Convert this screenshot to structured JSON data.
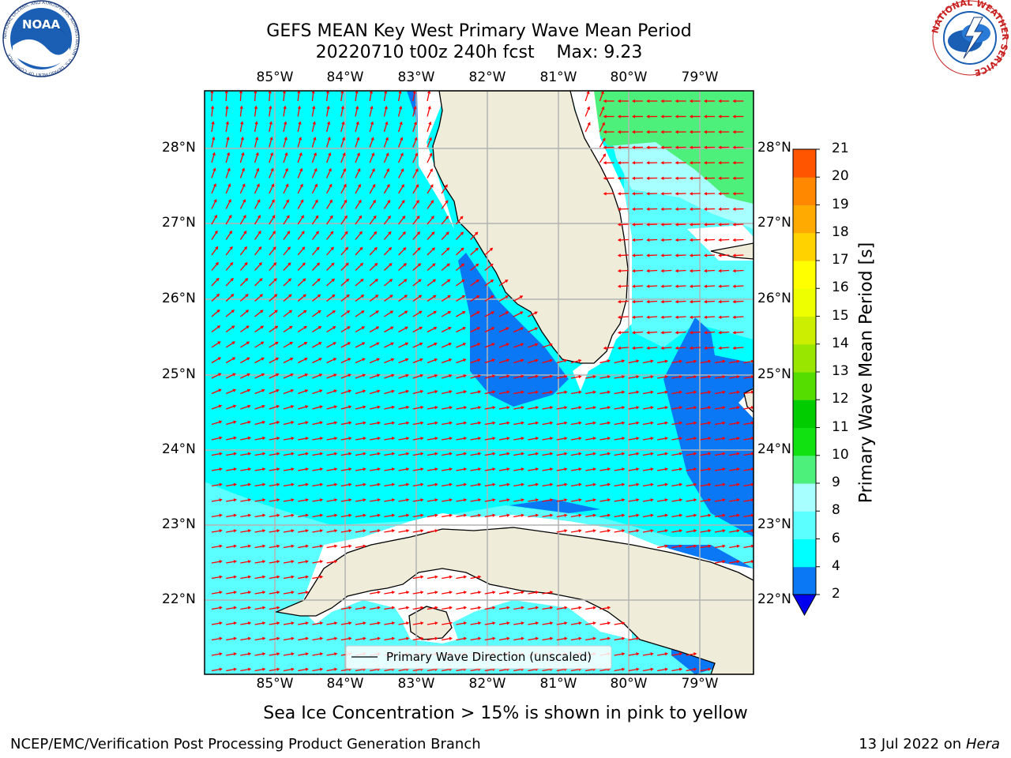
{
  "header": {
    "title_line1": "GEFS MEAN Key West Primary Wave Mean Period",
    "title_line2": "20220710 t00z 240h fcst    Max: 9.23"
  },
  "logos": {
    "left": "noaa-logo",
    "left_text": "NOAA",
    "left_ring_text": "NATIONAL OCEANIC AND ATMOSPHERIC ADMINISTRATION · U.S. DEPARTMENT OF COMMERCE",
    "right": "nws-logo",
    "right_ring_text": "NATIONAL WEATHER SERVICE"
  },
  "map": {
    "lon_labels": [
      "85°W",
      "84°W",
      "83°W",
      "82°W",
      "81°W",
      "80°W",
      "79°W"
    ],
    "lat_labels": [
      "28°N",
      "27°N",
      "26°N",
      "25°N",
      "24°N",
      "23°N",
      "22°N"
    ],
    "legend_label": "Primary Wave Direction (unscaled)",
    "colors": {
      "land": "#efecda",
      "period_2_4": "#0a78f5",
      "period_4_6": "#00ffff",
      "period_6_8": "#5cffff",
      "period_8_9": "#a8ffff",
      "period_9_10": "#4cf07a",
      "period_below_2": "#0a0ae0",
      "arrows": "#ff0000",
      "gridlines": "#b3b3b3"
    }
  },
  "colorbar": {
    "title": "Primary Wave Mean Period [s]",
    "ticks": [
      "2",
      "4",
      "6",
      "8",
      "9",
      "10",
      "11",
      "12",
      "13",
      "14",
      "15",
      "16",
      "17",
      "18",
      "19",
      "20",
      "21"
    ],
    "colors": [
      "#0a78f5",
      "#00ffff",
      "#5cffff",
      "#a8ffff",
      "#4cf07a",
      "#11e011",
      "#00cc00",
      "#55dd00",
      "#99e600",
      "#ccee00",
      "#eeff00",
      "#ffff00",
      "#ffd200",
      "#ffaa00",
      "#ff8800",
      "#ff5500",
      "#ff2200",
      "#ff0000"
    ],
    "extend_color": "#0000ee"
  },
  "notes": {
    "ice": "Sea Ice Concentration > 15% is shown in pink to yellow"
  },
  "footer": {
    "left": "NCEP/EMC/Verification Post Processing Product Generation Branch",
    "date": "13 Jul 2022 on ",
    "system": "Hera"
  }
}
